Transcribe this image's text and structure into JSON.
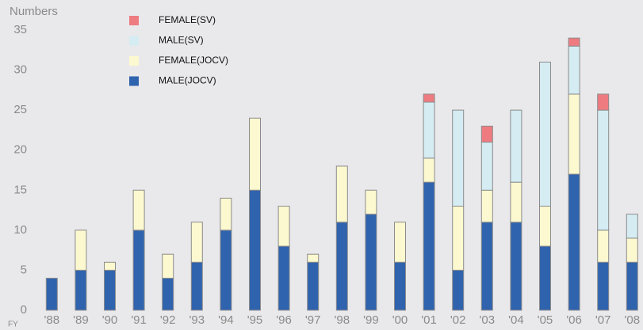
{
  "chart_data": {
    "type": "stacked_bar",
    "y_label": "Numbers",
    "x_label": "FY",
    "categories": [
      "'88",
      "'89",
      "'90",
      "'91",
      "'92",
      "'93",
      "'94",
      "'95",
      "'96",
      "'97",
      "'98",
      "'99",
      "'00",
      "'01",
      "'02",
      "'03",
      "'04",
      "'05",
      "'06",
      "'07",
      "'08"
    ],
    "series": [
      {
        "name": "MALE(JOCV)",
        "color": "#2f63ae",
        "values": [
          4,
          5,
          5,
          10,
          4,
          6,
          10,
          15,
          8,
          6,
          11,
          12,
          6,
          16,
          5,
          11,
          11,
          8,
          17,
          6,
          6
        ]
      },
      {
        "name": "FEMALE(JOCV)",
        "color": "#fcf8cf",
        "values": [
          0,
          5,
          1,
          5,
          3,
          5,
          4,
          9,
          5,
          1,
          7,
          3,
          5,
          3,
          8,
          4,
          5,
          5,
          10,
          4,
          3
        ]
      },
      {
        "name": "MALE(SV)",
        "color": "#d4ecf2",
        "values": [
          0,
          0,
          0,
          0,
          0,
          0,
          0,
          0,
          0,
          0,
          0,
          0,
          0,
          7,
          12,
          6,
          9,
          18,
          6,
          15,
          3
        ]
      },
      {
        "name": "FEMALE(SV)",
        "color": "#ee7b80",
        "values": [
          0,
          0,
          0,
          0,
          0,
          0,
          0,
          0,
          0,
          0,
          0,
          0,
          0,
          1,
          0,
          2,
          0,
          0,
          1,
          2,
          0
        ]
      }
    ],
    "ylim": [
      0,
      35
    ],
    "yticks": [
      0,
      5,
      10,
      15,
      20,
      25,
      30,
      35
    ],
    "legend": "top-left"
  }
}
